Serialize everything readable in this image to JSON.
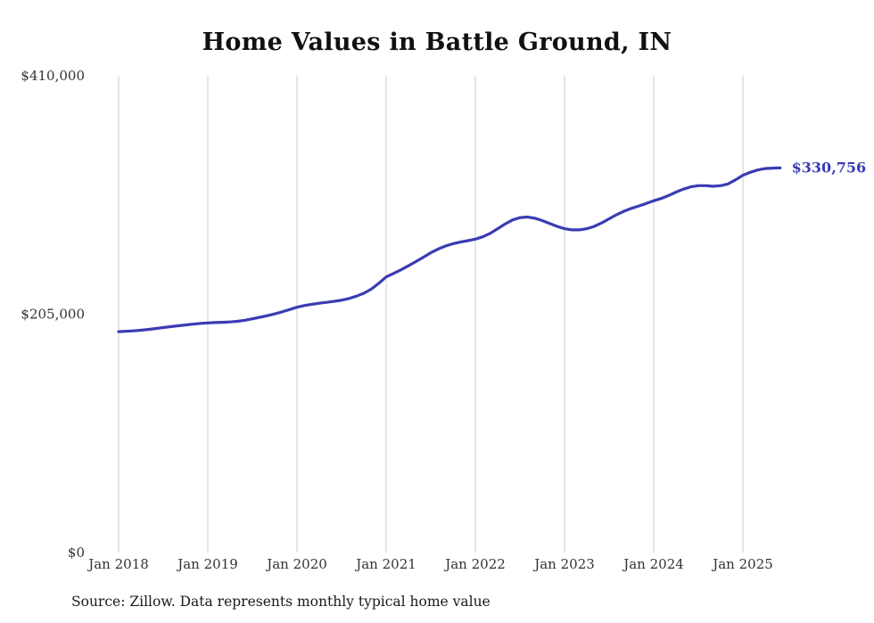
{
  "title": "Home Values in Battle Ground, IN",
  "source_note": "Source: Zillow. Data represents monthly typical home value",
  "end_label": "$330,756",
  "colors": {
    "line": "#3b3bb4",
    "grid": "#cccccc",
    "tick_text": "#333333",
    "title_text": "#111111"
  },
  "chart_data": {
    "type": "line",
    "title": "Home Values in Battle Ground, IN",
    "xlabel": "",
    "ylabel": "",
    "ylim": [
      0,
      410000
    ],
    "grid": "vertical-only",
    "legend": "none",
    "frequency": "monthly",
    "start": "2018-01",
    "end": "2025-06",
    "x_tick_labels": [
      "Jan 2018",
      "Jan 2019",
      "Jan 2020",
      "Jan 2021",
      "Jan 2022",
      "Jan 2023",
      "Jan 2024",
      "Jan 2025"
    ],
    "y_ticks": [
      {
        "value": 0,
        "label": "$0"
      },
      {
        "value": 205000,
        "label": "$205,000"
      },
      {
        "value": 410000,
        "label": "$410,000"
      }
    ],
    "series": [
      {
        "name": "Typical home value",
        "values": [
          190000,
          190300,
          190700,
          191200,
          191900,
          192700,
          193500,
          194300,
          195000,
          195700,
          196400,
          197000,
          197500,
          197800,
          198000,
          198300,
          198900,
          199800,
          201000,
          202300,
          203700,
          205200,
          207000,
          209000,
          211000,
          212400,
          213500,
          214400,
          215200,
          216000,
          217000,
          218500,
          220500,
          223000,
          226500,
          231500,
          237000,
          240000,
          243200,
          246600,
          250200,
          254000,
          257800,
          261000,
          263600,
          265600,
          267000,
          268200,
          269500,
          271500,
          274500,
          278500,
          282500,
          286000,
          288000,
          288500,
          287500,
          285500,
          283000,
          280500,
          278500,
          277500,
          277500,
          278500,
          280500,
          283500,
          287000,
          290500,
          293500,
          296000,
          298000,
          300200,
          302500,
          304500,
          307000,
          310000,
          312500,
          314500,
          315500,
          315500,
          315000,
          315500,
          317000,
          320500,
          324500,
          327000,
          329000,
          330200,
          330600,
          330756
        ]
      }
    ],
    "last_value": 330756
  }
}
